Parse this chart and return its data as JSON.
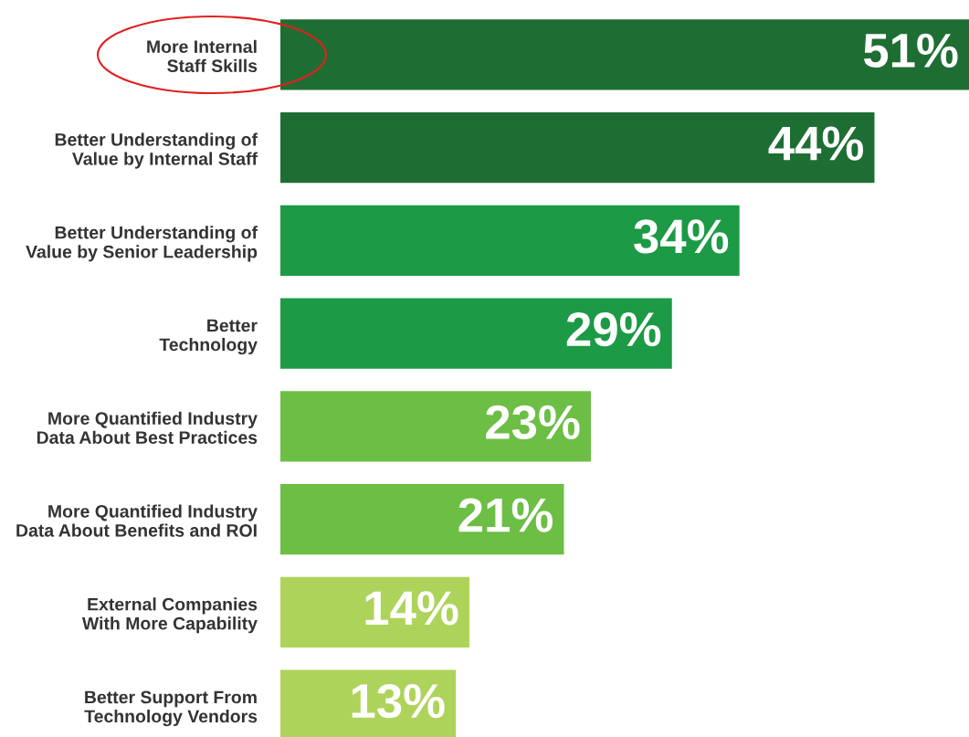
{
  "chart_data": {
    "type": "bar",
    "orientation": "horizontal",
    "categories": [
      "More Internal\nStaff Skills",
      "Better Understanding of\nValue by Internal Staff",
      "Better Understanding of\nValue by Senior Leadership",
      "Better\nTechnology",
      "More Quantified Industry\nData About Best Practices",
      "More Quantified Industry\nData About Benefits and ROI",
      "External Companies\nWith More Capability",
      "Better Support From\nTechnology Vendors"
    ],
    "values": [
      51,
      44,
      34,
      29,
      23,
      21,
      14,
      13
    ],
    "colors": [
      "#1e6e33",
      "#1e6e33",
      "#1c9a45",
      "#1c9a45",
      "#6cbe45",
      "#6cbe45",
      "#aed35b",
      "#aed35b"
    ],
    "value_labels": [
      "51%",
      "44%",
      "34%",
      "29%",
      "23%",
      "21%",
      "14%",
      "13%"
    ],
    "tick_labels": "y",
    "grid": false,
    "legend": false
  }
}
